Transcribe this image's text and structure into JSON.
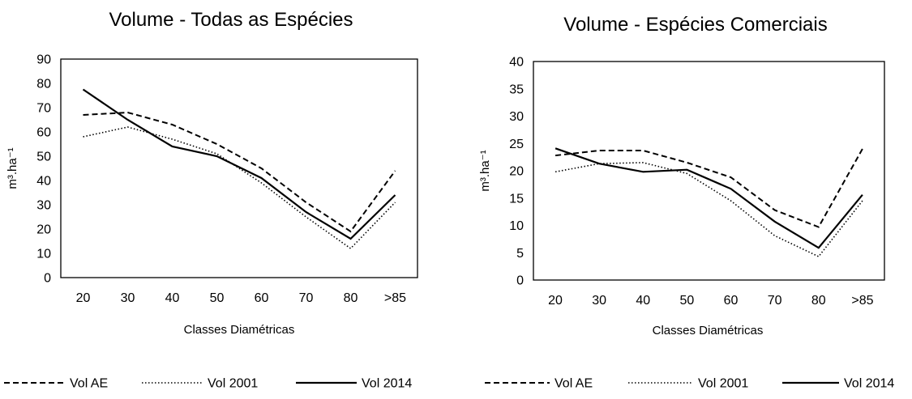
{
  "chart_data": [
    {
      "type": "line",
      "title": "Volume - Todas as Espécies",
      "xlabel": "Classes Diamétricas",
      "ylabel": "m³.ha⁻¹",
      "categories": [
        "20",
        "30",
        "40",
        "50",
        "60",
        "70",
        "80",
        ">85"
      ],
      "ylim": [
        0,
        90
      ],
      "yticks": [
        0,
        10,
        20,
        30,
        40,
        50,
        60,
        70,
        80,
        90
      ],
      "grid": false,
      "legend_position": "bottom",
      "series": [
        {
          "name": "Vol AE",
          "style": "dashed",
          "values": [
            67,
            68,
            63,
            55,
            45,
            31,
            19,
            44
          ]
        },
        {
          "name": "Vol 2001",
          "style": "dotted",
          "values": [
            58,
            62,
            57,
            51,
            39,
            25,
            12,
            31
          ]
        },
        {
          "name": "Vol 2014",
          "style": "solid",
          "values": [
            77.5,
            65,
            54,
            50,
            41,
            27,
            16,
            34
          ]
        }
      ]
    },
    {
      "type": "line",
      "title": "Volume - Espécies Comerciais",
      "xlabel": "Classes Diamétricas",
      "ylabel": "m³.ha⁻¹",
      "categories": [
        "20",
        "30",
        "40",
        "50",
        "60",
        "70",
        "80",
        ">85"
      ],
      "ylim": [
        0,
        40
      ],
      "yticks": [
        0,
        5,
        10,
        15,
        20,
        25,
        30,
        35,
        40
      ],
      "grid": false,
      "legend_position": "bottom",
      "series": [
        {
          "name": "Vol AE",
          "style": "dashed",
          "values": [
            22.8,
            23.7,
            23.7,
            21.5,
            18.8,
            12.8,
            9.7,
            24.0
          ]
        },
        {
          "name": "Vol 2001",
          "style": "dotted",
          "values": [
            19.8,
            21.3,
            21.5,
            19.5,
            14.5,
            8.1,
            4.3,
            14.5
          ]
        },
        {
          "name": "Vol 2014",
          "style": "solid",
          "values": [
            24.1,
            21.3,
            19.8,
            20.2,
            16.7,
            10.7,
            5.9,
            15.6
          ]
        }
      ]
    }
  ]
}
